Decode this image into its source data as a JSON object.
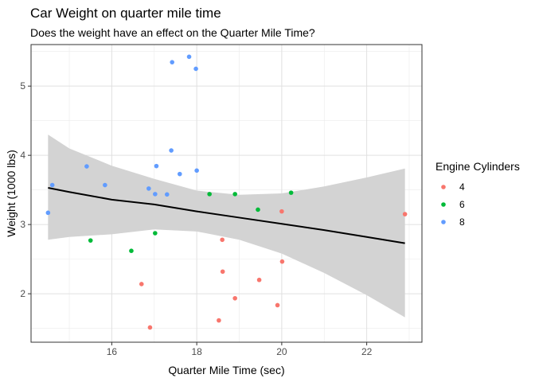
{
  "chart_data": {
    "type": "scatter",
    "title": "Car Weight on quarter mile time",
    "subtitle": "Does the weight have an effect on the Quarter Mile Time?",
    "xlabel": "Quarter Mile Time (sec)",
    "ylabel": "Weight (1000 lbs)",
    "xlim": [
      14.1,
      23.3
    ],
    "ylim": [
      1.3,
      5.6
    ],
    "xticks": [
      16,
      18,
      20,
      22
    ],
    "yticks": [
      2,
      3,
      4,
      5
    ],
    "grid": true,
    "legend": {
      "title": "Engine Cylinders",
      "position": "right",
      "entries": [
        {
          "label": "4",
          "color": "#F8766D"
        },
        {
          "label": "6",
          "color": "#00BA38"
        },
        {
          "label": "8",
          "color": "#619CFF"
        }
      ]
    },
    "series": [
      {
        "name": "4",
        "color": "#F8766D",
        "points": [
          [
            18.61,
            2.32
          ],
          [
            20.0,
            3.19
          ],
          [
            22.9,
            3.15
          ],
          [
            19.47,
            2.2
          ],
          [
            18.52,
            1.615
          ],
          [
            19.9,
            1.835
          ],
          [
            20.01,
            2.465
          ],
          [
            18.9,
            1.935
          ],
          [
            16.7,
            2.14
          ],
          [
            16.9,
            1.513
          ],
          [
            18.6,
            2.78
          ]
        ]
      },
      {
        "name": "6",
        "color": "#00BA38",
        "points": [
          [
            16.46,
            2.62
          ],
          [
            17.02,
            2.875
          ],
          [
            19.44,
            3.215
          ],
          [
            20.22,
            3.46
          ],
          [
            18.3,
            3.44
          ],
          [
            18.9,
            3.44
          ],
          [
            15.5,
            2.77
          ]
        ]
      },
      {
        "name": "8",
        "color": "#619CFF",
        "points": [
          [
            17.02,
            3.44
          ],
          [
            15.84,
            3.57
          ],
          [
            17.4,
            4.07
          ],
          [
            17.6,
            3.73
          ],
          [
            18.0,
            3.78
          ],
          [
            17.98,
            5.25
          ],
          [
            17.82,
            5.424
          ],
          [
            17.42,
            5.345
          ],
          [
            16.87,
            3.52
          ],
          [
            17.3,
            3.435
          ],
          [
            15.41,
            3.84
          ],
          [
            17.05,
            3.845
          ],
          [
            14.5,
            3.17
          ],
          [
            14.6,
            3.57
          ]
        ]
      }
    ],
    "trend": {
      "method": "loess",
      "color": "#000000",
      "band_color": "#d3d3d3",
      "x": [
        14.5,
        15.0,
        16.0,
        17.0,
        18.0,
        19.0,
        20.0,
        21.0,
        22.0,
        22.9
      ],
      "y": [
        3.53,
        3.47,
        3.36,
        3.29,
        3.19,
        3.1,
        3.01,
        2.92,
        2.82,
        2.73
      ],
      "lower": [
        2.78,
        2.82,
        2.86,
        2.93,
        2.9,
        2.78,
        2.58,
        2.3,
        1.98,
        1.66
      ],
      "upper": [
        4.3,
        4.1,
        3.85,
        3.66,
        3.49,
        3.43,
        3.45,
        3.55,
        3.68,
        3.81
      ]
    }
  }
}
